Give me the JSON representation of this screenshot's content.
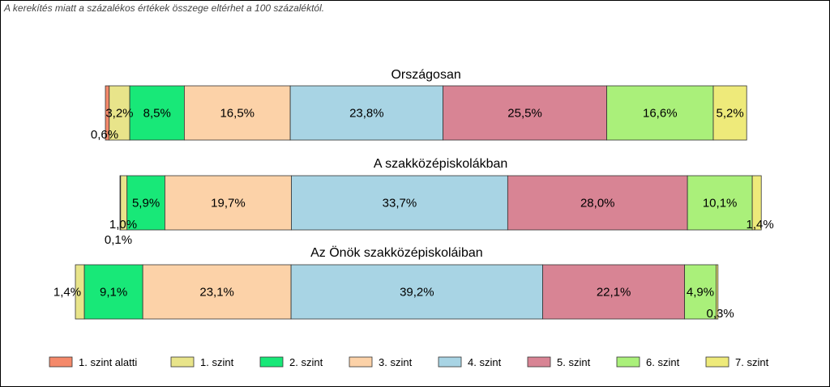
{
  "note": "A kerekítés miatt a  százalékos értékek összege eltérhet a 100 százaléktól.",
  "chart_data": {
    "type": "bar",
    "orientation": "horizontal",
    "stacked": true,
    "series": [
      {
        "name": "1. szint alatti",
        "color": "#f4896a"
      },
      {
        "name": "1. szint",
        "color": "#e8e48a"
      },
      {
        "name": "2. szint",
        "color": "#18e878"
      },
      {
        "name": "3. szint",
        "color": "#fcd2a8"
      },
      {
        "name": "4. szint",
        "color": "#a8d4e4"
      },
      {
        "name": "5. szint",
        "color": "#d88494"
      },
      {
        "name": "6. szint",
        "color": "#aaf07a"
      },
      {
        "name": "7. szint",
        "color": "#eeea7a"
      }
    ],
    "bars": [
      {
        "title": "Országosan",
        "values": [
          0.6,
          3.2,
          8.5,
          16.5,
          23.8,
          25.5,
          16.6,
          5.2
        ],
        "labels": [
          "0,6%",
          "3,2%",
          "8,5%",
          "16,5%",
          "23,8%",
          "25,5%",
          "16,6%",
          "5,2%"
        ]
      },
      {
        "title": "A szakközépiskolákban",
        "values": [
          0.1,
          1.0,
          5.9,
          19.7,
          33.7,
          28.0,
          10.1,
          1.4
        ],
        "labels": [
          "0,1%",
          "1,0%",
          "5,9%",
          "19,7%",
          "33,7%",
          "28,0%",
          "10,1%",
          "1,4%"
        ]
      },
      {
        "title": "Az Önök szakközépiskoláiban",
        "values": [
          0.0,
          1.4,
          9.1,
          23.1,
          39.2,
          22.1,
          4.9,
          0.3
        ],
        "labels": [
          "",
          "1,4%",
          "9,1%",
          "23,1%",
          "39,2%",
          "22,1%",
          "4,9%",
          "0,3%"
        ]
      }
    ],
    "legend_position": "bottom"
  }
}
